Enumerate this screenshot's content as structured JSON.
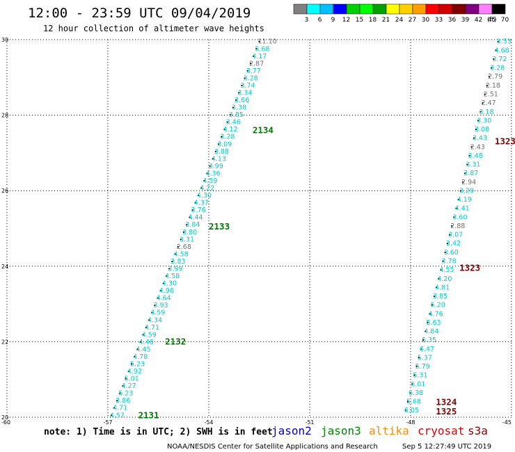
{
  "header": {
    "title": "12:00 - 23:59 UTC 09/04/2019",
    "subtitle": "12 hour collection of altimeter wave heights"
  },
  "scale": {
    "labels": [
      "3",
      "6",
      "9",
      "12",
      "15",
      "18",
      "21",
      "24",
      "27",
      "30",
      "33",
      "36",
      "39",
      "42",
      "45",
      "70"
    ],
    "unit": "(ft)",
    "colors": [
      "#808080",
      "#00ffff",
      "#00bfff",
      "#0000ff",
      "#00d000",
      "#00ff00",
      "#00a000",
      "#ffff00",
      "#ffd000",
      "#ffa000",
      "#ff0000",
      "#d00000",
      "#800000",
      "#800080",
      "#ff80ff",
      "#000000"
    ]
  },
  "footer": {
    "note": "note: 1) Time is in UTC; 2) SWH is in feet",
    "legend": [
      {
        "name": "jason2",
        "color": "#0000cc"
      },
      {
        "name": "jason3",
        "color": "#008800"
      },
      {
        "name": "altika",
        "color": "#ff8c00"
      },
      {
        "name": "cryosat",
        "color": "#dd0000"
      },
      {
        "name": "s3a",
        "color": "#8b0000"
      }
    ],
    "credit": "NOAA/NESDIS Center for Satellite Applications and Research",
    "timestamp": "Sep  5 12:27:49 UTC 2019"
  },
  "chart_data": {
    "type": "scatter",
    "xlim": [
      -60,
      -45
    ],
    "ylim": [
      20,
      30
    ],
    "x_ticks": [
      "-60",
      "-57",
      "-54",
      "-51",
      "-48",
      "-45"
    ],
    "y_ticks": [
      "20",
      "22",
      "24",
      "26",
      "28",
      "30"
    ],
    "grid": true,
    "tracks": [
      {
        "x_start": -56.9,
        "x_end": -52.5,
        "lat_start": 20.05,
        "lat_end": 29.95,
        "values": [
          "4.57",
          "4.71",
          "3.86",
          "5.23",
          "4.27",
          "5.01",
          "4.92",
          "5.23",
          "4.78",
          "4.45",
          "4.46",
          "4.59",
          "4.71",
          "4.34",
          "4.59",
          "3.93",
          "4.64",
          "4.96",
          "4.30",
          "4.58",
          "3.99",
          "3.83",
          "4.58",
          "2.68",
          "3.31",
          "3.80",
          "3.84",
          "4.44",
          "3.76",
          "4.37",
          "4.30",
          "4.22",
          "4.59",
          "4.36",
          "3.99",
          "4.13",
          "3.88",
          "3.09",
          "3.28",
          "4.12",
          "3.46",
          "3.85",
          "3.38",
          "3.66",
          "3.34",
          "3.74",
          "3.28",
          "3.77",
          "2.87",
          "4.17",
          "5.68",
          "11.10"
        ],
        "colors": [
          "c",
          "c",
          "c",
          "c",
          "c",
          "c",
          "c",
          "c",
          "c",
          "c",
          "c",
          "c",
          "c",
          "c",
          "c",
          "c",
          "c",
          "c",
          "c",
          "c",
          "c",
          "c",
          "c",
          "g",
          "c",
          "c",
          "c",
          "c",
          "c",
          "c",
          "c",
          "c",
          "c",
          "c",
          "c",
          "c",
          "c",
          "c",
          "c",
          "c",
          "c",
          "c",
          "c",
          "c",
          "c",
          "c",
          "c",
          "c",
          "g",
          "c",
          "c",
          "g"
        ]
      },
      {
        "x_start": -48.15,
        "x_end": -45.4,
        "lat_start": 20.18,
        "lat_end": 29.95,
        "values": [
          "6.05",
          "5.68",
          "6.38",
          "6.01",
          "5.31",
          "5.79",
          "5.37",
          "6.47",
          "5.35",
          "4.84",
          "5.63",
          "4.76",
          "5.20",
          "3.85",
          "4.81",
          "4.20",
          "4.55",
          "3.78",
          "3.60",
          "3.42",
          "3.07",
          "2.88",
          "3.60",
          "4.41",
          "4.19",
          "3.29",
          "2.94",
          "3.87",
          "3.31",
          "3.48",
          "2.43",
          "3.43",
          "3.08",
          "3.30",
          "3.18",
          "2.47",
          "2.51",
          "2.18",
          "2.79",
          "3.28",
          "3.72",
          "4.68",
          "3.53"
        ],
        "colors": [
          "c",
          "c",
          "c",
          "c",
          "c",
          "c",
          "c",
          "c",
          "c",
          "c",
          "c",
          "c",
          "c",
          "c",
          "c",
          "c",
          "c",
          "c",
          "c",
          "c",
          "c",
          "g",
          "c",
          "c",
          "c",
          "c",
          "g",
          "c",
          "c",
          "c",
          "g",
          "c",
          "c",
          "c",
          "c",
          "g",
          "g",
          "g",
          "g",
          "c",
          "c",
          "c",
          "c"
        ]
      }
    ],
    "time_labels": [
      {
        "text": "2131",
        "x": -56.1,
        "y": 20.05,
        "color": "#007700"
      },
      {
        "text": "2132",
        "x": -55.3,
        "y": 22.0,
        "color": "#007700"
      },
      {
        "text": "2133",
        "x": -54.0,
        "y": 25.05,
        "color": "#007700"
      },
      {
        "text": "2134",
        "x": -52.7,
        "y": 27.6,
        "color": "#007700"
      },
      {
        "text": "1323",
        "x": -46.55,
        "y": 23.95,
        "color": "#800000"
      },
      {
        "text": "1323",
        "x": -45.5,
        "y": 27.3,
        "color": "#800000"
      },
      {
        "text": "1324",
        "x": -47.25,
        "y": 20.4,
        "color": "#800000"
      },
      {
        "text": "1325",
        "x": -47.25,
        "y": 20.15,
        "color": "#800000"
      }
    ]
  }
}
